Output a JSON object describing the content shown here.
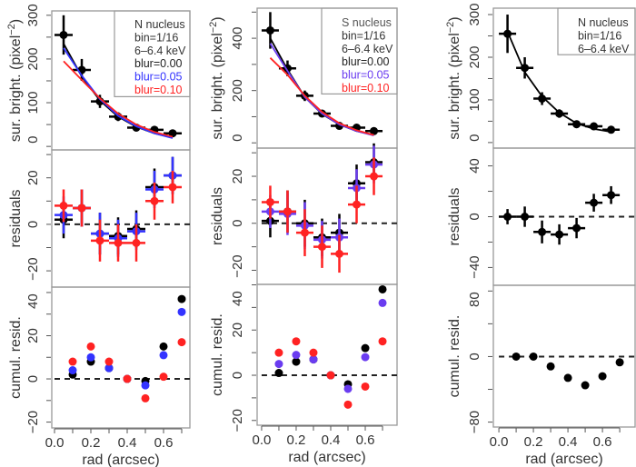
{
  "chart_data": [
    {
      "type": "scatter",
      "legend": {
        "lines": [
          {
            "text": "N nucleus",
            "color": "#333333"
          },
          {
            "text": "bin=1/16",
            "color": "#333333"
          },
          {
            "text": "6–6.4 keV",
            "color": "#333333"
          },
          {
            "text": "blur=0.00",
            "color": "#222222"
          },
          {
            "text": "blur=0.05",
            "color": "#3333ff"
          },
          {
            "text": "blur=0.10",
            "color": "#ff2222"
          }
        ],
        "placement": "top-right"
      },
      "x": [
        0.05,
        0.15,
        0.25,
        0.35,
        0.45,
        0.55,
        0.65
      ],
      "xerr": 0.05,
      "cumul_x": [
        0.1,
        0.2,
        0.3,
        0.4,
        0.5,
        0.6,
        0.7
      ],
      "xlabel": "rad (arcsec)",
      "xticks": [
        "0.0",
        "0.2",
        "0.4",
        "0.6"
      ],
      "xlim": [
        -0.015,
        0.745
      ],
      "panels": [
        {
          "kind": "profile",
          "ylabel": "sur. bright. (pixel",
          "ylabel_sup": "−2",
          "ylabel_end": ")",
          "ylim": [
            -8,
            310
          ],
          "yticks": [
            "0",
            "100",
            "200",
            "300"
          ],
          "ytick_values": [
            0,
            100,
            200,
            300
          ],
          "minor": 50,
          "data": {
            "color": "#000000",
            "y": [
              255,
              175,
              103,
              68,
              43,
              38,
              30
            ],
            "yerr": [
              45,
              25,
              15,
              10,
              7,
              6,
              5
            ]
          },
          "models": [
            {
              "name": "blur=0.00",
              "color": "#000000",
              "y": [
                235,
                160,
                105,
                68,
                45,
                30,
                20
              ]
            },
            {
              "name": "blur=0.05",
              "color": "#3333ff",
              "y": [
                225,
                162,
                108,
                70,
                46,
                30,
                19
              ]
            },
            {
              "name": "blur=0.10",
              "color": "#ff2222",
              "y": [
                195,
                152,
                110,
                75,
                50,
                33,
                22
              ]
            }
          ]
        },
        {
          "kind": "residuals",
          "ylabel": "residuals",
          "ylim": [
            -27,
            32
          ],
          "yticks": [
            "−20",
            "0",
            "20"
          ],
          "ytick_values": [
            -20,
            0,
            20
          ],
          "minor": 10,
          "series": [
            {
              "name": "blur=0.00",
              "color": "#000000",
              "y": [
                2,
                7,
                -4,
                -5,
                -2,
                16,
                21
              ],
              "yerr": [
                8,
                8,
                9,
                8,
                8,
                8,
                8
              ]
            },
            {
              "name": "blur=0.05",
              "color": "#3333ff",
              "y": [
                4,
                7,
                -4,
                -6,
                -3,
                15,
                21
              ],
              "yerr": [
                8,
                8,
                9,
                8,
                8,
                8,
                8
              ]
            },
            {
              "name": "blur=0.10",
              "color": "#ff2222",
              "y": [
                8,
                7,
                -7,
                -8,
                -8,
                10,
                16
              ],
              "yerr": [
                7,
                8,
                9,
                8,
                8,
                8,
                7
              ]
            }
          ]
        },
        {
          "kind": "cumulative",
          "ylabel": "cumul. resid.",
          "ylim": [
            -22.7,
            42.5
          ],
          "yticks": [
            "−20",
            "0",
            "20",
            "40"
          ],
          "ytick_values": [
            -20,
            0,
            20,
            40
          ],
          "minor": 10,
          "series": [
            {
              "name": "blur=0.00",
              "color": "#000000",
              "y": [
                2,
                8,
                5,
                0,
                -1,
                15,
                37
              ]
            },
            {
              "name": "blur=0.05",
              "color": "#3333ff",
              "y": [
                4,
                10,
                5,
                0,
                -3,
                11,
                31
              ]
            },
            {
              "name": "blur=0.10",
              "color": "#ff2222",
              "y": [
                8,
                15,
                8,
                0,
                -9,
                1,
                17
              ]
            }
          ]
        }
      ]
    },
    {
      "type": "scatter",
      "legend": {
        "lines": [
          {
            "text": "S nucleus",
            "color": "#555555"
          },
          {
            "text": "bin=1/16",
            "color": "#333333"
          },
          {
            "text": "6–6.4 keV",
            "color": "#333333"
          },
          {
            "text": "blur=0.00",
            "color": "#222222"
          },
          {
            "text": "blur=0.05",
            "color": "#6a3cf0"
          },
          {
            "text": "blur=0.10",
            "color": "#ff2222"
          }
        ],
        "placement": "top-right"
      },
      "x": [
        0.05,
        0.15,
        0.25,
        0.35,
        0.45,
        0.55,
        0.65
      ],
      "xerr": 0.05,
      "cumul_x": [
        0.1,
        0.2,
        0.3,
        0.4,
        0.5,
        0.6,
        0.7
      ],
      "xlabel": "rad (arcsec)",
      "xticks": [
        "0.0",
        "0.2",
        "0.4",
        "0.6"
      ],
      "xlim": [
        -0.026,
        0.784
      ],
      "panels": [
        {
          "kind": "profile",
          "ylabel": "sur. bright. (pixel",
          "ylabel_sup": "−2",
          "ylabel_end": ")",
          "ylim": [
            -20,
            515
          ],
          "yticks": [
            "0",
            "200",
            "400"
          ],
          "ytick_values": [
            0,
            200,
            400
          ],
          "minor": 100,
          "data": {
            "color": "#000000",
            "y": [
              430,
              285,
              180,
              112,
              65,
              58,
              45
            ],
            "yerr": [
              70,
              30,
              20,
              12,
              10,
              8,
              6
            ]
          },
          "models": [
            {
              "name": "blur=0.00",
              "color": "#000000",
              "y": [
                400,
                280,
                175,
                110,
                70,
                45,
                30
              ]
            },
            {
              "name": "blur=0.05",
              "color": "#6a3cf0",
              "y": [
                380,
                275,
                175,
                112,
                70,
                45,
                28
              ]
            },
            {
              "name": "blur=0.10",
              "color": "#ff2222",
              "y": [
                325,
                260,
                180,
                118,
                75,
                48,
                30
              ]
            }
          ]
        },
        {
          "kind": "residuals",
          "ylabel": "residuals",
          "ylim": [
            -26,
            32
          ],
          "yticks": [
            "−20",
            "0",
            "20"
          ],
          "ytick_values": [
            -20,
            0,
            20
          ],
          "minor": 10,
          "series": [
            {
              "name": "blur=0.00",
              "color": "#000000",
              "y": [
                1,
                5,
                0,
                -6,
                -4,
                17,
                26
              ],
              "yerr": [
                7,
                9,
                10,
                8,
                8,
                8,
                8
              ]
            },
            {
              "name": "blur=0.05",
              "color": "#6a3cf0",
              "y": [
                5,
                4,
                -1,
                -7,
                -6,
                15,
                25
              ],
              "yerr": [
                7,
                9,
                10,
                8,
                8,
                8,
                8
              ]
            },
            {
              "name": "blur=0.10",
              "color": "#ff2222",
              "y": [
                9,
                5,
                -4,
                -10,
                -13,
                8,
                20
              ],
              "yerr": [
                7,
                9,
                10,
                9,
                8,
                8,
                8
              ]
            }
          ]
        },
        {
          "kind": "cumulative",
          "ylabel": "cumul. resid.",
          "ylim": [
            -22.1,
            40.2
          ],
          "yticks": [
            "−20",
            "0",
            "20",
            "40"
          ],
          "ytick_values": [
            -20,
            0,
            20,
            40
          ],
          "minor": 10,
          "series": [
            {
              "name": "blur=0.00",
              "color": "#000000",
              "y": [
                1,
                6,
                7,
                0,
                -4,
                12,
                38
              ]
            },
            {
              "name": "blur=0.05",
              "color": "#6a3cf0",
              "y": [
                5,
                9,
                7,
                0,
                -6,
                8,
                32
              ]
            },
            {
              "name": "blur=0.10",
              "color": "#ff2222",
              "y": [
                10,
                15,
                10,
                0,
                -13,
                -5,
                15
              ]
            }
          ]
        }
      ]
    },
    {
      "type": "scatter",
      "legend": {
        "lines": [
          {
            "text": "N nucleus",
            "color": "#333333"
          },
          {
            "text": "bin=1/16",
            "color": "#333333"
          },
          {
            "text": "6–6.4 keV",
            "color": "#333333"
          }
        ],
        "placement": "top-right"
      },
      "x": [
        0.05,
        0.15,
        0.25,
        0.35,
        0.45,
        0.55,
        0.65
      ],
      "xerr": 0.05,
      "cumul_x": [
        0.1,
        0.2,
        0.3,
        0.4,
        0.5,
        0.6,
        0.7
      ],
      "xlabel": "rad (arcsec)",
      "xticks": [
        "0.0",
        "0.2",
        "0.4",
        "0.6"
      ],
      "xlim": [
        -0.032,
        0.789
      ],
      "panels": [
        {
          "kind": "profile",
          "ylabel": "sur. bright. (pixel",
          "ylabel_sup": "−2",
          "ylabel_end": ")",
          "ylim": [
            -13,
            315
          ],
          "yticks": [
            "0",
            "100",
            "200",
            "300"
          ],
          "ytick_values": [
            0,
            100,
            200,
            300
          ],
          "minor": 50,
          "data": {
            "color": "#000000",
            "y": [
              255,
              175,
              103,
              68,
              43,
              38,
              30
            ],
            "yerr": [
              45,
              25,
              15,
              10,
              7,
              6,
              5
            ]
          },
          "models": [
            {
              "name": "model",
              "color": "#000000",
              "y": [
                260,
                165,
                108,
                70,
                45,
                32,
                25
              ]
            }
          ]
        },
        {
          "kind": "residuals",
          "ylabel": "residuals",
          "ylim": [
            -54,
            54
          ],
          "yticks": [
            "−40",
            "0",
            "40"
          ],
          "ytick_values": [
            -40,
            0,
            40
          ],
          "minor": 20,
          "series": [
            {
              "name": "",
              "color": "#000000",
              "y": [
                0,
                0,
                -12,
                -14,
                -9,
                11,
                17
              ],
              "yerr": [
                6,
                8,
                9,
                8,
                8,
                7,
                7
              ]
            }
          ]
        },
        {
          "kind": "cumulative",
          "ylabel": "cumul. resid.",
          "ylim": [
            -86,
            87
          ],
          "yticks": [
            "−80",
            "0",
            "80"
          ],
          "ytick_values": [
            -80,
            0,
            80
          ],
          "minor": 40,
          "series": [
            {
              "name": "",
              "color": "#000000",
              "y": [
                0,
                0,
                -12,
                -26,
                -35,
                -24,
                -7
              ]
            }
          ]
        }
      ]
    }
  ]
}
